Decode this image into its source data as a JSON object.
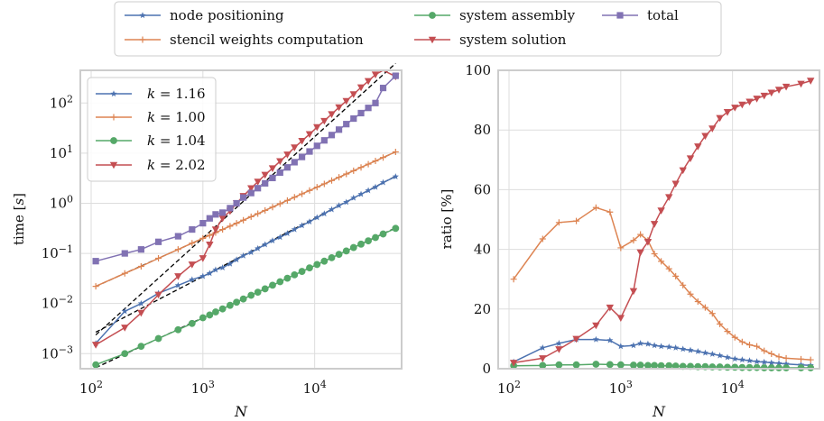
{
  "figure_legend": [
    {
      "label": "node positioning",
      "color": "#4c72b0",
      "marker": "star"
    },
    {
      "label": "stencil weights computation",
      "color": "#dd8452",
      "marker": "plus"
    },
    {
      "label": "system assembly",
      "color": "#55a868",
      "marker": "circle"
    },
    {
      "label": "system solution",
      "color": "#c44e52",
      "marker": "triangle-down"
    },
    {
      "label": "total",
      "color": "#8172b3",
      "marker": "square"
    }
  ],
  "colors": {
    "blue": "#4c72b0",
    "orange": "#dd8452",
    "green": "#55a868",
    "red": "#c44e52",
    "purple": "#8172b3",
    "fit": "#000000",
    "panel": "#ffffff",
    "grid": "#dddddd",
    "frame": "#cccccc"
  },
  "chart_data": [
    {
      "type": "line",
      "xlabel": "N",
      "ylabel": "time [s]",
      "xscale": "log",
      "yscale": "log",
      "xlim": [
        80,
        60000
      ],
      "ylim": [
        0.0005,
        450
      ],
      "xticks": [
        100,
        1000,
        10000
      ],
      "xtick_labels": [
        "10^2",
        "10^3",
        "10^4"
      ],
      "yticks": [
        0.001,
        0.01,
        0.1,
        1,
        10,
        100
      ],
      "ytick_labels": [
        "10^-3",
        "10^-2",
        "10^-1",
        "10^0",
        "10^1",
        "10^2"
      ],
      "grid": true,
      "legend": {
        "position": "top-left",
        "entries": [
          {
            "label": "k = 1.16",
            "series": "node positioning"
          },
          {
            "label": "k = 1.00",
            "series": "stencil weights computation"
          },
          {
            "label": "k = 1.04",
            "series": "system assembly"
          },
          {
            "label": "k = 2.02",
            "series": "system solution"
          }
        ]
      },
      "x": [
        110,
        200,
        280,
        400,
        600,
        800,
        1000,
        1150,
        1300,
        1500,
        1750,
        2000,
        2300,
        2700,
        3100,
        3600,
        4200,
        4900,
        5700,
        6600,
        7700,
        9000,
        10500,
        12200,
        14200,
        16500,
        19200,
        22300,
        26000,
        30200,
        35000,
        41000,
        53000
      ],
      "series": [
        {
          "name": "node positioning",
          "color": "#4c72b0",
          "marker": "star",
          "values": [
            0.0016,
            0.007,
            0.01,
            0.016,
            0.023,
            0.03,
            0.035,
            0.04,
            0.047,
            0.052,
            0.062,
            0.075,
            0.09,
            0.105,
            0.125,
            0.15,
            0.18,
            0.21,
            0.25,
            0.3,
            0.36,
            0.43,
            0.52,
            0.62,
            0.75,
            0.9,
            1.05,
            1.28,
            1.52,
            1.8,
            2.1,
            2.6,
            3.4
          ]
        },
        {
          "name": "stencil weights computation",
          "color": "#dd8452",
          "marker": "plus",
          "values": [
            0.022,
            0.04,
            0.055,
            0.08,
            0.12,
            0.16,
            0.2,
            0.23,
            0.26,
            0.3,
            0.35,
            0.4,
            0.46,
            0.54,
            0.62,
            0.72,
            0.84,
            0.98,
            1.14,
            1.32,
            1.54,
            1.8,
            2.1,
            2.44,
            2.84,
            3.3,
            3.84,
            4.46,
            5.2,
            6.04,
            7.0,
            8.2,
            10.6
          ]
        },
        {
          "name": "system assembly",
          "color": "#55a868",
          "marker": "circle",
          "values": [
            0.0006,
            0.001,
            0.0014,
            0.002,
            0.003,
            0.004,
            0.0052,
            0.0059,
            0.0068,
            0.0078,
            0.0092,
            0.0106,
            0.0123,
            0.0146,
            0.0168,
            0.0196,
            0.0232,
            0.0272,
            0.032,
            0.0373,
            0.0437,
            0.0514,
            0.06,
            0.07,
            0.082,
            0.0957,
            0.112,
            0.131,
            0.153,
            0.178,
            0.207,
            0.244,
            0.316
          ]
        },
        {
          "name": "system solution",
          "color": "#c44e52",
          "marker": "triangle-down",
          "values": [
            0.0015,
            0.0033,
            0.0065,
            0.015,
            0.035,
            0.06,
            0.08,
            0.15,
            0.3,
            0.5,
            0.7,
            1.0,
            1.4,
            2.0,
            2.7,
            3.7,
            5.0,
            6.9,
            9.4,
            13.0,
            17.6,
            24.0,
            33.0,
            44.0,
            60.0,
            82.0,
            110.0,
            150.0,
            205.0,
            275.0,
            370.0,
            500.0,
            340.0
          ]
        },
        {
          "name": "total",
          "color": "#8172b3",
          "marker": "square",
          "values": [
            0.07,
            0.1,
            0.12,
            0.17,
            0.22,
            0.3,
            0.4,
            0.5,
            0.6,
            0.65,
            0.8,
            1.0,
            1.3,
            1.6,
            2.0,
            2.5,
            3.2,
            4.1,
            5.2,
            6.6,
            8.4,
            10.8,
            14.0,
            18.0,
            23.0,
            29.5,
            38.0,
            49.0,
            63.0,
            80.0,
            100.0,
            200.0,
            350.0
          ]
        }
      ],
      "fits": [
        {
          "series": "node positioning",
          "k": 1.16,
          "style": "dashed",
          "color": "#000000"
        },
        {
          "series": "stencil weights computation",
          "k": 1.0,
          "style": "dashed",
          "color": "#000000"
        },
        {
          "series": "system assembly",
          "k": 1.04,
          "style": "dashed",
          "color": "#000000"
        },
        {
          "series": "system solution",
          "k": 2.02,
          "style": "dashed",
          "color": "#000000"
        }
      ]
    },
    {
      "type": "line",
      "xlabel": "N",
      "ylabel": "ratio [%]",
      "xscale": "log",
      "yscale": "linear",
      "xlim": [
        80,
        60000
      ],
      "ylim": [
        0,
        100
      ],
      "xticks": [
        100,
        1000,
        10000
      ],
      "xtick_labels": [
        "10^2",
        "10^3",
        "10^4"
      ],
      "yticks": [
        0,
        20,
        40,
        60,
        80,
        100
      ],
      "grid": true,
      "x": [
        110,
        200,
        280,
        400,
        600,
        800,
        1000,
        1300,
        1500,
        1750,
        2000,
        2300,
        2700,
        3100,
        3600,
        4200,
        4900,
        5700,
        6600,
        7700,
        9000,
        10500,
        12200,
        14200,
        16500,
        19200,
        22300,
        26000,
        30200,
        41000,
        50000
      ],
      "series": [
        {
          "name": "node positioning",
          "color": "#4c72b0",
          "marker": "star",
          "values": [
            2.3,
            7.0,
            8.5,
            9.8,
            9.8,
            9.5,
            7.5,
            7.8,
            8.5,
            8.3,
            7.8,
            7.5,
            7.3,
            7.0,
            6.6,
            6.2,
            5.8,
            5.3,
            4.9,
            4.4,
            3.8,
            3.3,
            3.0,
            2.7,
            2.4,
            2.2,
            2.0,
            1.8,
            1.6,
            1.3,
            1.1
          ]
        },
        {
          "name": "stencil weights computation",
          "color": "#dd8452",
          "marker": "plus",
          "values": [
            30.0,
            43.5,
            49.0,
            49.5,
            54.0,
            52.5,
            40.5,
            43.0,
            45.0,
            43.0,
            38.5,
            36.0,
            33.5,
            31.0,
            28.0,
            25.0,
            22.5,
            20.5,
            18.5,
            15.0,
            12.5,
            10.5,
            9.0,
            8.0,
            7.5,
            6.0,
            5.0,
            4.0,
            3.5,
            3.2,
            3.0
          ]
        },
        {
          "name": "system assembly",
          "color": "#55a868",
          "marker": "circle",
          "values": [
            1.0,
            1.1,
            1.3,
            1.3,
            1.5,
            1.4,
            1.3,
            1.2,
            1.2,
            1.1,
            1.1,
            1.0,
            1.0,
            0.9,
            0.8,
            0.8,
            0.7,
            0.7,
            0.6,
            0.6,
            0.5,
            0.5,
            0.4,
            0.4,
            0.4,
            0.3,
            0.3,
            0.3,
            0.3,
            0.3,
            0.3
          ]
        },
        {
          "name": "system solution",
          "color": "#c44e52",
          "marker": "triangle-down",
          "values": [
            2.0,
            3.5,
            6.5,
            10.0,
            14.5,
            20.5,
            17.0,
            26.0,
            39.0,
            42.5,
            48.5,
            53.0,
            57.5,
            62.0,
            66.5,
            70.5,
            74.5,
            78.0,
            80.5,
            84.0,
            86.0,
            87.5,
            88.5,
            89.5,
            90.5,
            91.5,
            92.5,
            93.5,
            94.5,
            95.5,
            96.5
          ]
        }
      ]
    }
  ]
}
